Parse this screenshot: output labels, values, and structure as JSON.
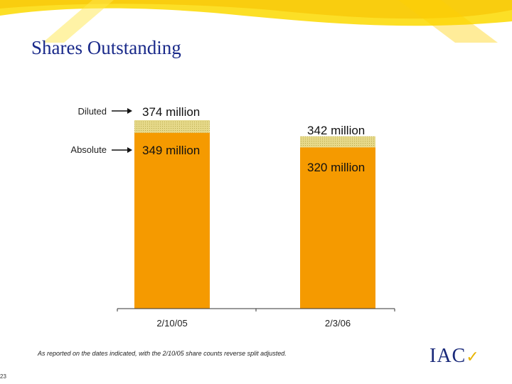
{
  "title": "Shares Outstanding",
  "legend": {
    "diluted": "Diluted",
    "absolute": "Absolute"
  },
  "chart_data": {
    "type": "bar",
    "categories": [
      "2/10/05",
      "2/3/06"
    ],
    "series": [
      {
        "name": "Absolute",
        "values": [
          349,
          320
        ]
      },
      {
        "name": "Diluted",
        "values": [
          374,
          342
        ]
      }
    ],
    "data_labels": {
      "diluted": [
        "374 million",
        "342 million"
      ],
      "absolute": [
        "349 million",
        "320 million"
      ]
    },
    "ylim": [
      0,
      374
    ],
    "colors": {
      "absolute": "#f59a00",
      "diluted": "#e8dc8a",
      "title": "#1a2a8a",
      "banner": "#f5c400"
    }
  },
  "footnote": "As reported on the dates indicated, with the 2/10/05 share counts reverse split adjusted.",
  "page_number": "23",
  "logo": {
    "text": "IAC",
    "mark": "✓"
  }
}
